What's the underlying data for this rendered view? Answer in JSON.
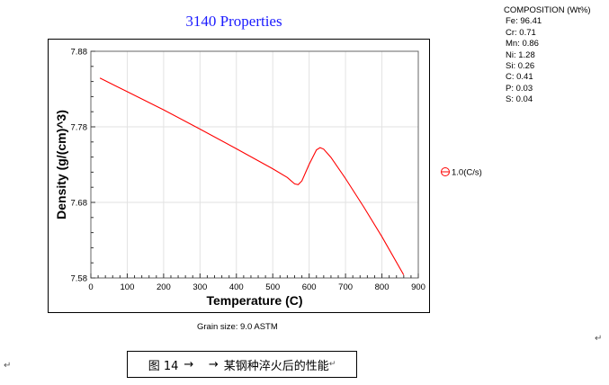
{
  "title": "3140 Properties",
  "composition": {
    "title": "COMPOSITION (Wt%)",
    "items": [
      "Fe: 96.41",
      "Cr: 0.71",
      "Mn: 0.86",
      "Ni: 1.28",
      "Si: 0.26",
      "C: 0.41",
      "P: 0.03",
      "S: 0.04"
    ]
  },
  "grain_size": "Grain size: 9.0 ASTM",
  "caption": {
    "label": "图 14",
    "arrows": "→    →",
    "text": "某钢种淬火后的性能",
    "return_mark": "↵"
  },
  "return_mark": "↵",
  "chart_data": {
    "type": "line",
    "title": "3140 Properties",
    "xlabel": "Temperature (C)",
    "ylabel": "Density (g/(cm)^3)",
    "xlim": [
      0,
      900
    ],
    "ylim": [
      7.58,
      7.88
    ],
    "xticks": [
      0,
      100,
      200,
      300,
      400,
      500,
      600,
      700,
      800,
      900
    ],
    "yticks": [
      7.58,
      7.68,
      7.78,
      7.88
    ],
    "ytick_labels": [
      "7.58",
      "7.68",
      "7.78",
      "7.88"
    ],
    "grid": true,
    "legend_position": "right",
    "series": [
      {
        "name": "1.0(C/s)",
        "color": "#ff0000",
        "x": [
          25,
          100,
          200,
          300,
          400,
          500,
          540,
          560,
          570,
          580,
          600,
          620,
          630,
          640,
          660,
          700,
          750,
          800,
          860
        ],
        "y": [
          7.8445,
          7.8265,
          7.8025,
          7.777,
          7.751,
          7.7245,
          7.713,
          7.7045,
          7.7035,
          7.7085,
          7.7305,
          7.7495,
          7.7525,
          7.7505,
          7.7395,
          7.7115,
          7.674,
          7.6345,
          7.584
        ]
      }
    ]
  }
}
